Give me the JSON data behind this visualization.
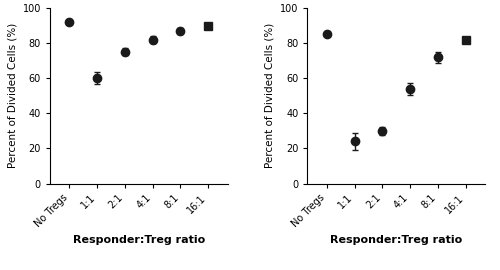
{
  "left": {
    "x_labels": [
      "No Tregs",
      "1:1",
      "2:1",
      "4:1",
      "8:1",
      "16:1"
    ],
    "y_values": [
      92,
      60,
      75,
      82,
      87,
      90
    ],
    "y_errors": [
      0.5,
      3.5,
      2.0,
      2.0,
      1.5,
      1.5
    ],
    "markers": [
      "o",
      "o",
      "o",
      "o",
      "o",
      "s"
    ],
    "ylabel": "Percent of Divided Cells (%)",
    "xlabel": "Responder:Treg ratio",
    "ylim": [
      0,
      100
    ],
    "yticks": [
      0,
      20,
      40,
      60,
      80,
      100
    ]
  },
  "right": {
    "x_labels": [
      "No Tregs",
      "1:1",
      "2:1",
      "4:1",
      "8:1",
      "16:1"
    ],
    "y_values": [
      85,
      24,
      30,
      54,
      72,
      82
    ],
    "y_errors": [
      0.5,
      5.0,
      2.5,
      3.5,
      3.0,
      1.5
    ],
    "markers": [
      "o",
      "o",
      "o",
      "o",
      "o",
      "s"
    ],
    "ylabel": "Percent of Divided Cells (%)",
    "xlabel": "Responder:Treg ratio",
    "ylim": [
      0,
      100
    ],
    "yticks": [
      0,
      20,
      40,
      60,
      80,
      100
    ]
  },
  "marker_color": "#1a1a1a",
  "marker_size": 6,
  "capsize": 2.5,
  "elinewidth": 1.0,
  "capthick": 1.0,
  "background_color": "#ffffff",
  "label_fontsize": 7.5,
  "tick_fontsize": 7,
  "xlabel_fontsize": 8
}
